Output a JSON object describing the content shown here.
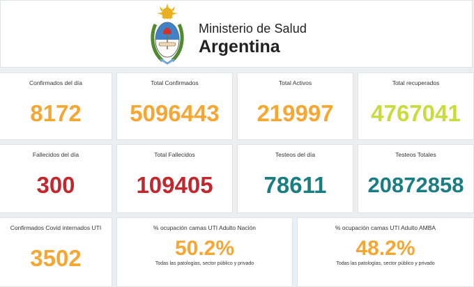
{
  "header": {
    "ministry": "Ministerio de Salud",
    "country": "Argentina",
    "logo_icon": "argentina-coat-of-arms-icon"
  },
  "colors": {
    "orange": "#f5a733",
    "lime": "#c7dc3f",
    "red": "#c0282e",
    "teal": "#1a7d82"
  },
  "row1": [
    {
      "label": "Confirmados del día",
      "value": "8172"
    },
    {
      "label": "Total Confirmados",
      "value": "5096443"
    },
    {
      "label": "Total Activos",
      "value": "219997"
    },
    {
      "label": "Total recuperados",
      "value": "4767041"
    }
  ],
  "row2": [
    {
      "label": "Fallecidos del día",
      "value": "300"
    },
    {
      "label": "Total Fallecidos",
      "value": "109405"
    },
    {
      "label": "Testeos del día",
      "value": "78611"
    },
    {
      "label": "Testeos Totales",
      "value": "20872858"
    }
  ],
  "row3": [
    {
      "label": "Confirmados Covid internados UTI",
      "value": "3502"
    },
    {
      "label": "% ocupación camas UTI Adulto Nación",
      "value": "50.2%",
      "note": "Todas las patologías, sector público y privado"
    },
    {
      "label": "% ocupación camas UTI Adulto AMBA",
      "value": "48.2%",
      "note": "Todas las patologías, sector público y privado"
    }
  ]
}
